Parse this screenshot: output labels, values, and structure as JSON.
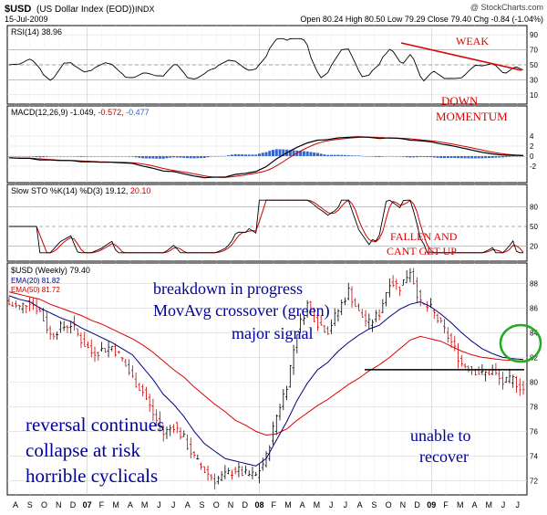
{
  "header": {
    "symbol": "$USD",
    "name": "(US Dollar Index (EOD))",
    "exchange": "INDX",
    "watermark": "@ StockCharts.com",
    "date": "15-Jul-2009",
    "ohlc": "Open 80.24  High 80.50  Low 79.29  Close 79.40  Chg -0.84 (-1.04%)"
  },
  "panels": {
    "rsi": {
      "label": "RSI(14) 38.96",
      "ticks": [
        90,
        70,
        50,
        30,
        10
      ]
    },
    "macd": {
      "label_main": "MACD(12,26,9) -1.049,",
      "label_signal": "-0.572,",
      "label_hist": "-0.477"
    },
    "sto": {
      "label_main": "Slow STO %K(14) %D(3) 19.12,",
      "label_d": "20.10",
      "ticks": [
        80,
        50,
        20
      ]
    },
    "price": {
      "label_main": "$USD (Weekly) 79.40",
      "label_ema20": "EMA(20) 81.82",
      "label_ema50": "EMA(50) 81.72",
      "ticks": [
        88,
        86,
        84,
        82,
        80,
        78,
        76,
        74,
        72
      ]
    }
  },
  "annotations": {
    "weak": "WEAK",
    "down_momentum_1": "DOWN",
    "down_momentum_2": "MOMENTUM",
    "fallen_1": "FALLEN AND",
    "fallen_2": "CANT GET UP",
    "breakdown_1": "breakdown in progress",
    "breakdown_2": "MovAvg crossover (green)",
    "breakdown_3": "major signal",
    "reversal_1": "reversal continues",
    "reversal_2": "collapse at risk",
    "reversal_3": "horrible cyclicals",
    "unable_1": "unable to",
    "unable_2": "recover"
  },
  "x_axis": [
    "A",
    "S",
    "O",
    "N",
    "D",
    "07",
    "F",
    "M",
    "A",
    "M",
    "J",
    "J",
    "A",
    "S",
    "O",
    "N",
    "D",
    "08",
    "F",
    "M",
    "A",
    "M",
    "J",
    "J",
    "A",
    "S",
    "O",
    "N",
    "D",
    "09",
    "F",
    "M",
    "A",
    "M",
    "J",
    "J"
  ],
  "colors": {
    "price": "#cc0000",
    "ema20": "#000080",
    "ema50": "#dd0000",
    "macd_hist": "#3366cc",
    "crossover_circle": "#22aa22",
    "annotation_red": "#dd0000",
    "annotation_blue": "#000099"
  },
  "chart_data": {
    "type": "line",
    "series": [
      {
        "name": "$USD (Weekly)",
        "x": [
          0,
          3,
          6,
          9,
          12,
          15,
          18,
          21,
          24,
          27,
          30,
          33,
          36,
          39,
          42,
          45,
          48,
          51,
          54,
          57,
          60,
          63,
          66,
          69,
          72,
          75,
          78,
          81,
          84,
          87,
          90,
          93,
          96,
          99,
          102,
          105,
          108,
          111,
          114,
          117,
          120,
          123,
          126,
          129,
          132,
          135,
          138,
          141,
          144,
          147,
          150
        ],
        "values": [
          86.3,
          86.0,
          86.6,
          85.7,
          83.8,
          84.4,
          84.7,
          83.4,
          82.4,
          82.6,
          82.9,
          81.8,
          80.3,
          79.2,
          77.4,
          75.8,
          76.5,
          75.4,
          73.8,
          72.8,
          72.1,
          72.4,
          72.9,
          72.5,
          72.4,
          73.9,
          77.3,
          79.8,
          84.1,
          86.3,
          84.8,
          84.2,
          85.8,
          87.4,
          85.6,
          84.7,
          85.6,
          88.2,
          87.7,
          89.1,
          86.3,
          85.9,
          84.6,
          83.2,
          81.5,
          81.1,
          80.6,
          80.9,
          79.9,
          80.2,
          79.4
        ]
      },
      {
        "name": "EMA(20)",
        "values": [
          87.0,
          86.7,
          86.5,
          86.0,
          85.6,
          85.2,
          84.9,
          84.4,
          84.0,
          83.6,
          83.2,
          82.7,
          82.2,
          81.2,
          80.2,
          79.0,
          78.2,
          77.2,
          76.0,
          75.0,
          74.4,
          73.8,
          73.6,
          73.4,
          73.2,
          73.8,
          75.3,
          76.8,
          78.5,
          79.9,
          81.0,
          81.6,
          82.5,
          83.2,
          83.8,
          84.3,
          84.6,
          85.3,
          85.9,
          86.3,
          86.5,
          86.1,
          85.5,
          84.8,
          84.0,
          83.3,
          82.7,
          82.3,
          82.0,
          81.9,
          81.82
        ]
      },
      {
        "name": "EMA(50)",
        "values": [
          87.3,
          87.1,
          86.9,
          86.7,
          86.3,
          86.0,
          85.7,
          85.4,
          85.0,
          84.7,
          84.3,
          83.9,
          83.5,
          83.0,
          82.4,
          81.7,
          81.0,
          80.4,
          79.6,
          78.9,
          78.2,
          77.6,
          76.9,
          76.5,
          76.0,
          75.7,
          75.8,
          76.2,
          76.9,
          77.5,
          78.1,
          78.6,
          79.2,
          79.8,
          80.3,
          80.9,
          81.4,
          82.0,
          82.7,
          83.4,
          83.7,
          83.5,
          83.3,
          82.9,
          82.5,
          82.2,
          82.0,
          81.9,
          81.8,
          81.75,
          81.72
        ]
      }
    ],
    "ylim": [
      71,
      89.5
    ],
    "yticks": [
      72,
      74,
      76,
      78,
      80,
      82,
      84,
      86,
      88
    ],
    "resistance_level": 81
  }
}
